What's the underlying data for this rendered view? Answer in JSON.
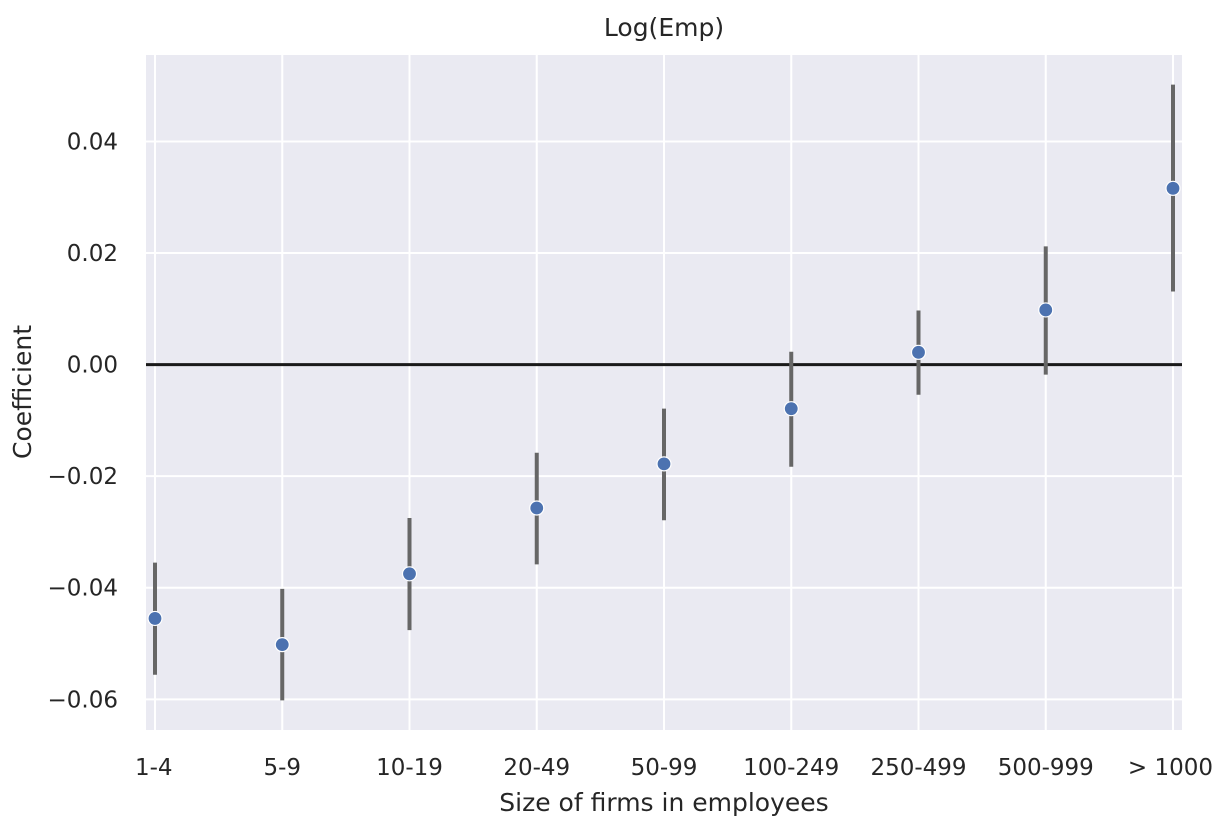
{
  "chart_data": {
    "type": "scatter",
    "title": "Log(Emp)",
    "xlabel": "Size of firms in employees",
    "ylabel": "Coefficient",
    "categories": [
      "1-4",
      "5-9",
      "10-19",
      "20-49",
      "50-99",
      "100-249",
      "250-499",
      "500-999",
      "> 1000"
    ],
    "series": [
      {
        "values": [
          -0.0455,
          -0.0502,
          -0.0375,
          -0.0257,
          -0.0178,
          -0.0079,
          0.0022,
          0.0098,
          0.0316
        ],
        "ci_lower": [
          -0.0556,
          -0.0602,
          -0.0476,
          -0.0358,
          -0.0279,
          -0.0183,
          -0.0054,
          -0.0018,
          0.0131
        ],
        "ci_upper": [
          -0.0355,
          -0.0402,
          -0.0275,
          -0.0158,
          -0.0079,
          0.0023,
          0.0097,
          0.0212,
          0.0502
        ]
      }
    ],
    "ylim": [
      -0.0655,
      0.0555
    ],
    "yticks": [
      -0.06,
      -0.04,
      -0.02,
      0.0,
      0.02,
      0.04
    ],
    "ytick_labels": [
      "−0.06",
      "−0.04",
      "−0.02",
      "0.00",
      "0.02",
      "0.04"
    ],
    "reference_line": 0.0,
    "grid": true,
    "colors": {
      "background": "#EAEAF2",
      "grid": "#FFFFFF",
      "marker": "#4C72B0",
      "errorbar": "#666666",
      "reference_line": "#1A1A1A"
    }
  }
}
